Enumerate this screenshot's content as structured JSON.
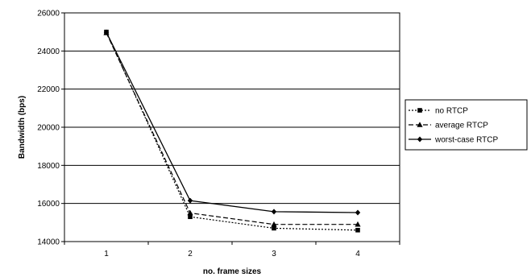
{
  "chart_data": {
    "type": "line",
    "title": "",
    "xlabel": "no. frame sizes",
    "ylabel": "Bandwidth (bps)",
    "x": [
      1,
      2,
      3,
      4
    ],
    "ylim": [
      14000,
      26000
    ],
    "yticks": [
      14000,
      16000,
      18000,
      20000,
      22000,
      24000,
      26000
    ],
    "grid": "horizontal",
    "legend_position": "right",
    "series": [
      {
        "name": "no RTCP",
        "values": [
          25000,
          15300,
          14700,
          14600
        ],
        "style": "dotted",
        "marker": "square",
        "color": "#000000"
      },
      {
        "name": "average RTCP",
        "values": [
          24950,
          15500,
          14900,
          14900
        ],
        "style": "dashed",
        "marker": "triangle",
        "color": "#000000"
      },
      {
        "name": "worst-case RTCP",
        "values": [
          24980,
          16150,
          15570,
          15520
        ],
        "style": "solid",
        "marker": "diamond",
        "color": "#000000"
      }
    ]
  }
}
